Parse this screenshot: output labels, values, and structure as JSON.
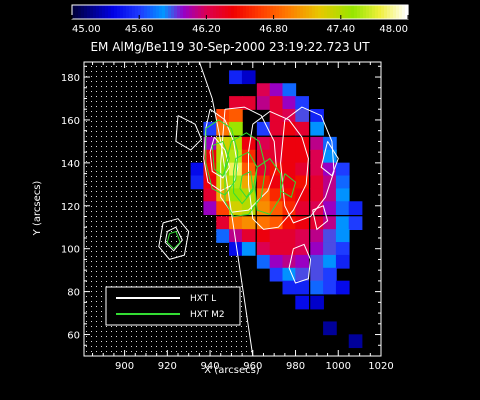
{
  "chart_data": {
    "type": "heatmap",
    "title": "EM AlMg/Be119 30-Sep-2000 23:19:22.723 UT",
    "xlabel": "X (arcsecs)",
    "ylabel": "Y (arcsecs)",
    "xlim": [
      881,
      1020
    ],
    "ylim": [
      50,
      187
    ],
    "x_ticks": [
      "900",
      "920",
      "940",
      "960",
      "980",
      "1000",
      "1020"
    ],
    "x_tick_values": [
      900,
      920,
      940,
      960,
      980,
      1000,
      1020
    ],
    "y_ticks": [
      "60",
      "80",
      "100",
      "120",
      "140",
      "160",
      "180"
    ],
    "y_tick_values": [
      60,
      80,
      100,
      120,
      140,
      160,
      180
    ],
    "colorbar": {
      "min": 45.0,
      "max": 48.0,
      "tick_labels": [
        "45.00",
        "45.60",
        "46.20",
        "46.80",
        "47.40",
        "48.00"
      ],
      "tick_values": [
        45.0,
        45.6,
        46.2,
        46.8,
        47.4,
        48.0
      ]
    },
    "cell_size_arcsec": 6.2,
    "em_cells": [
      [
        952,
        180,
        45.5
      ],
      [
        958,
        180,
        45.3
      ],
      [
        965,
        174,
        46.2
      ],
      [
        971,
        174,
        46.0
      ],
      [
        977,
        174,
        45.7
      ],
      [
        952,
        168,
        46.3
      ],
      [
        958,
        168,
        46.3
      ],
      [
        965,
        168,
        46.1
      ],
      [
        971,
        168,
        46.3
      ],
      [
        977,
        168,
        46.0
      ],
      [
        983,
        168,
        45.6
      ],
      [
        946,
        162,
        46.7
      ],
      [
        952,
        162,
        46.8
      ],
      [
        971,
        162,
        46.3
      ],
      [
        977,
        162,
        46.2
      ],
      [
        983,
        162,
        45.9
      ],
      [
        990,
        162,
        45.5
      ],
      [
        940,
        156,
        45.6
      ],
      [
        946,
        156,
        46.9
      ],
      [
        952,
        156,
        47.5
      ],
      [
        965,
        156,
        45.6
      ],
      [
        971,
        156,
        46.3
      ],
      [
        977,
        156,
        46.4
      ],
      [
        983,
        156,
        46.3
      ],
      [
        990,
        156,
        45.8
      ],
      [
        940,
        149,
        46.0
      ],
      [
        946,
        149,
        47.3
      ],
      [
        952,
        149,
        47.4
      ],
      [
        958,
        149,
        46.4
      ],
      [
        965,
        149,
        46.2
      ],
      [
        971,
        149,
        46.3
      ],
      [
        977,
        149,
        46.4
      ],
      [
        983,
        149,
        46.4
      ],
      [
        990,
        149,
        46.1
      ],
      [
        996,
        149,
        45.7
      ],
      [
        940,
        143,
        46.4
      ],
      [
        946,
        143,
        47.4
      ],
      [
        952,
        143,
        47.6
      ],
      [
        958,
        143,
        46.6
      ],
      [
        965,
        143,
        46.3
      ],
      [
        971,
        143,
        46.3
      ],
      [
        977,
        143,
        46.4
      ],
      [
        983,
        143,
        46.4
      ],
      [
        990,
        143,
        46.2
      ],
      [
        996,
        143,
        45.8
      ],
      [
        934,
        137,
        45.4
      ],
      [
        940,
        137,
        46.5
      ],
      [
        946,
        137,
        47.5
      ],
      [
        952,
        137,
        47.8
      ],
      [
        958,
        137,
        46.8
      ],
      [
        965,
        137,
        46.3
      ],
      [
        971,
        137,
        46.5
      ],
      [
        977,
        137,
        46.4
      ],
      [
        983,
        137,
        46.3
      ],
      [
        990,
        137,
        46.2
      ],
      [
        996,
        137,
        46.0
      ],
      [
        1002,
        137,
        45.6
      ],
      [
        934,
        131,
        45.5
      ],
      [
        940,
        131,
        46.4
      ],
      [
        946,
        131,
        47.3
      ],
      [
        952,
        131,
        47.6
      ],
      [
        958,
        131,
        47.1
      ],
      [
        965,
        131,
        46.6
      ],
      [
        971,
        131,
        46.4
      ],
      [
        977,
        131,
        46.4
      ],
      [
        983,
        131,
        46.5
      ],
      [
        990,
        131,
        46.3
      ],
      [
        996,
        131,
        46.1
      ],
      [
        1002,
        131,
        45.7
      ],
      [
        940,
        125,
        46.3
      ],
      [
        946,
        125,
        47.1
      ],
      [
        952,
        125,
        47.5
      ],
      [
        958,
        125,
        47.4
      ],
      [
        965,
        125,
        46.9
      ],
      [
        971,
        125,
        46.6
      ],
      [
        977,
        125,
        46.5
      ],
      [
        983,
        125,
        46.4
      ],
      [
        990,
        125,
        46.3
      ],
      [
        996,
        125,
        46.1
      ],
      [
        1002,
        125,
        45.8
      ],
      [
        940,
        119,
        46.0
      ],
      [
        946,
        119,
        46.7
      ],
      [
        952,
        119,
        47.3
      ],
      [
        958,
        119,
        47.4
      ],
      [
        965,
        119,
        47.0
      ],
      [
        971,
        119,
        46.8
      ],
      [
        977,
        119,
        46.6
      ],
      [
        983,
        119,
        46.3
      ],
      [
        990,
        119,
        46.2
      ],
      [
        996,
        119,
        46.0
      ],
      [
        1002,
        119,
        45.7
      ],
      [
        1008,
        119,
        45.5
      ],
      [
        946,
        112,
        46.3
      ],
      [
        952,
        112,
        46.9
      ],
      [
        958,
        112,
        47.0
      ],
      [
        965,
        112,
        46.9
      ],
      [
        971,
        112,
        46.8
      ],
      [
        977,
        112,
        46.5
      ],
      [
        983,
        112,
        46.4
      ],
      [
        990,
        112,
        46.3
      ],
      [
        996,
        112,
        46.1
      ],
      [
        1002,
        112,
        45.8
      ],
      [
        1008,
        112,
        45.6
      ],
      [
        946,
        106,
        45.7
      ],
      [
        952,
        106,
        46.1
      ],
      [
        958,
        106,
        46.3
      ],
      [
        965,
        106,
        46.4
      ],
      [
        971,
        106,
        46.3
      ],
      [
        977,
        106,
        46.3
      ],
      [
        983,
        106,
        46.2
      ],
      [
        990,
        106,
        46.1
      ],
      [
        996,
        106,
        45.9
      ],
      [
        1002,
        106,
        45.8
      ],
      [
        952,
        100,
        45.4
      ],
      [
        958,
        100,
        45.8
      ],
      [
        965,
        100,
        46.2
      ],
      [
        971,
        100,
        46.3
      ],
      [
        977,
        100,
        46.3
      ],
      [
        983,
        100,
        46.2
      ],
      [
        990,
        100,
        46.0
      ],
      [
        996,
        100,
        45.9
      ],
      [
        1002,
        100,
        45.6
      ],
      [
        965,
        94,
        45.7
      ],
      [
        971,
        94,
        46.0
      ],
      [
        977,
        94,
        46.1
      ],
      [
        983,
        94,
        46.0
      ],
      [
        990,
        94,
        45.9
      ],
      [
        996,
        94,
        45.8
      ],
      [
        1002,
        94,
        45.5
      ],
      [
        971,
        88,
        45.6
      ],
      [
        977,
        88,
        45.8
      ],
      [
        983,
        88,
        45.9
      ],
      [
        990,
        88,
        45.9
      ],
      [
        996,
        88,
        45.6
      ],
      [
        977,
        82,
        45.5
      ],
      [
        983,
        82,
        45.5
      ],
      [
        990,
        82,
        45.7
      ],
      [
        996,
        82,
        45.6
      ],
      [
        1002,
        82,
        45.4
      ],
      [
        983,
        75,
        45.4
      ],
      [
        990,
        75,
        45.3
      ],
      [
        996,
        63,
        45.2
      ],
      [
        1008,
        57,
        45.2
      ]
    ],
    "limb_curve": [
      [
        935,
        187
      ],
      [
        941,
        170
      ],
      [
        945,
        150
      ],
      [
        948,
        130
      ],
      [
        951,
        110
      ],
      [
        954,
        90
      ],
      [
        957,
        70
      ],
      [
        960,
        50
      ]
    ],
    "contours": {
      "hxt_l": [
        [
          [
            925,
            162
          ],
          [
            933,
            158
          ],
          [
            936,
            151
          ],
          [
            931,
            146
          ],
          [
            924,
            150
          ],
          [
            925,
            162
          ]
        ],
        [
          [
            940,
            165
          ],
          [
            947,
            160
          ],
          [
            951,
            150
          ],
          [
            953,
            138
          ],
          [
            951,
            130
          ],
          [
            945,
            127
          ],
          [
            939,
            131
          ],
          [
            937,
            142
          ],
          [
            938,
            156
          ],
          [
            940,
            165
          ]
        ],
        [
          [
            942,
            152
          ],
          [
            947,
            146
          ],
          [
            949,
            138
          ],
          [
            946,
            133
          ],
          [
            941,
            136
          ],
          [
            940,
            145
          ],
          [
            942,
            152
          ]
        ],
        [
          [
            947,
            165
          ],
          [
            956,
            166
          ],
          [
            964,
            162
          ],
          [
            970,
            150
          ],
          [
            971,
            138
          ],
          [
            967,
            127
          ],
          [
            958,
            118
          ],
          [
            950,
            117
          ],
          [
            945,
            124
          ],
          [
            945,
            140
          ],
          [
            947,
            165
          ]
        ],
        [
          [
            960,
            158
          ],
          [
            968,
            164
          ],
          [
            977,
            160
          ],
          [
            983,
            152
          ],
          [
            986,
            142
          ],
          [
            985,
            130
          ],
          [
            979,
            118
          ],
          [
            972,
            110
          ],
          [
            965,
            109
          ],
          [
            960,
            114
          ],
          [
            958,
            130
          ],
          [
            958,
            145
          ],
          [
            960,
            158
          ]
        ],
        [
          [
            975,
            160
          ],
          [
            983,
            166
          ],
          [
            992,
            162
          ],
          [
            997,
            150
          ],
          [
            998,
            136
          ],
          [
            994,
            124
          ],
          [
            987,
            115
          ],
          [
            979,
            112
          ],
          [
            975,
            120
          ],
          [
            973,
            140
          ],
          [
            975,
            160
          ]
        ],
        [
          [
            995,
            150
          ],
          [
            1000,
            142
          ],
          [
            997,
            134
          ],
          [
            992,
            138
          ],
          [
            995,
            150
          ]
        ],
        [
          [
            918,
            112
          ],
          [
            925,
            114
          ],
          [
            930,
            108
          ],
          [
            928,
            97
          ],
          [
            921,
            95
          ],
          [
            916,
            101
          ],
          [
            918,
            112
          ]
        ],
        [
          [
            920,
            108
          ],
          [
            924,
            110
          ],
          [
            927,
            104
          ],
          [
            923,
            99
          ],
          [
            919,
            103
          ],
          [
            920,
            108
          ]
        ],
        [
          [
            979,
            100
          ],
          [
            984,
            102
          ],
          [
            987,
            95
          ],
          [
            986,
            86
          ],
          [
            980,
            84
          ],
          [
            977,
            91
          ],
          [
            979,
            100
          ]
        ],
        [
          [
            988,
            118
          ],
          [
            993,
            120
          ],
          [
            995,
            113
          ],
          [
            990,
            109
          ],
          [
            988,
            118
          ]
        ]
      ],
      "hxt_m2": [
        [
          [
            938,
            156
          ],
          [
            944,
            160
          ],
          [
            950,
            156
          ],
          [
            953,
            145
          ],
          [
            952,
            132
          ],
          [
            947,
            125
          ],
          [
            941,
            128
          ],
          [
            938,
            140
          ],
          [
            938,
            156
          ]
        ],
        [
          [
            941,
            148
          ],
          [
            946,
            150
          ],
          [
            949,
            142
          ],
          [
            946,
            134
          ],
          [
            942,
            137
          ],
          [
            941,
            148
          ]
        ],
        [
          [
            950,
            150
          ],
          [
            957,
            154
          ],
          [
            963,
            150
          ],
          [
            966,
            138
          ],
          [
            964,
            124
          ],
          [
            958,
            116
          ],
          [
            951,
            115
          ],
          [
            947,
            122
          ],
          [
            947,
            138
          ],
          [
            950,
            150
          ]
        ],
        [
          [
            952,
            142
          ],
          [
            958,
            145
          ],
          [
            962,
            138
          ],
          [
            960,
            127
          ],
          [
            955,
            121
          ],
          [
            951,
            126
          ],
          [
            951,
            136
          ],
          [
            952,
            142
          ]
        ],
        [
          [
            955,
            134
          ],
          [
            959,
            136
          ],
          [
            960,
            128
          ],
          [
            957,
            124
          ],
          [
            954,
            128
          ],
          [
            955,
            134
          ]
        ],
        [
          [
            962,
            138
          ],
          [
            968,
            142
          ],
          [
            973,
            135
          ],
          [
            973,
            124
          ],
          [
            968,
            116
          ],
          [
            962,
            118
          ],
          [
            961,
            128
          ],
          [
            962,
            138
          ]
        ],
        [
          [
            975,
            135
          ],
          [
            980,
            131
          ],
          [
            978,
            124
          ],
          [
            973,
            127
          ],
          [
            975,
            135
          ]
        ],
        [
          [
            921,
            107
          ],
          [
            924,
            108
          ],
          [
            926,
            103
          ],
          [
            923,
            100
          ],
          [
            920,
            103
          ],
          [
            921,
            107
          ]
        ]
      ]
    },
    "legend": {
      "placement": "bottom-left",
      "entries": [
        {
          "name": "HXT L",
          "color": "#ffffff"
        },
        {
          "name": "HXT M2",
          "color": "#33dd33"
        }
      ]
    }
  }
}
